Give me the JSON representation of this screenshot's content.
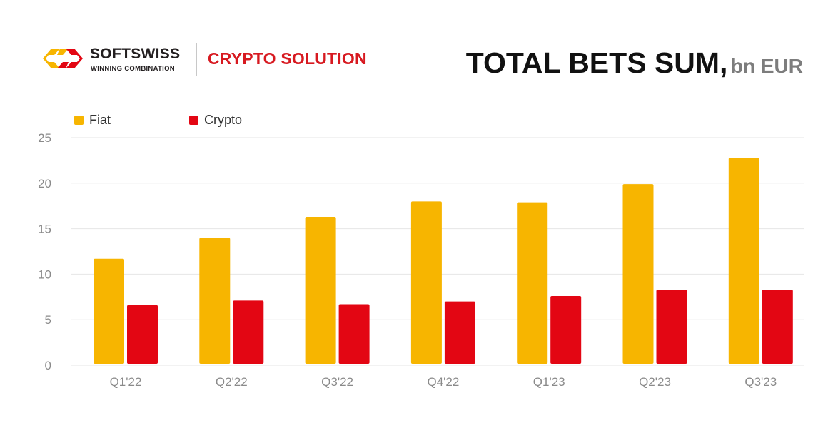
{
  "brand": {
    "name": "SOFTSWISS",
    "tagline": "WINNING COMBINATION",
    "product": "CRYPTO SOLUTION",
    "colors": {
      "primary": "#f7b500",
      "secondary": "#e30613"
    }
  },
  "chart_data": {
    "type": "bar",
    "title": "TOTAL BETS SUM,",
    "title_unit": "bn EUR",
    "categories": [
      "Q1'22",
      "Q2'22",
      "Q3'22",
      "Q4'22",
      "Q1'23",
      "Q2'23",
      "Q3'23"
    ],
    "series": [
      {
        "name": "Fiat",
        "color": "#f7b500",
        "values": [
          11.7,
          14.0,
          16.3,
          18.0,
          17.9,
          19.9,
          22.8
        ]
      },
      {
        "name": "Crypto",
        "color": "#e30613",
        "values": [
          6.6,
          7.1,
          6.7,
          7.0,
          7.6,
          8.3,
          8.3
        ]
      }
    ],
    "ylim": [
      0,
      25
    ],
    "yticks": [
      0,
      5,
      10,
      15,
      20,
      25
    ],
    "xlabel": "",
    "ylabel": "",
    "grid": true,
    "legend": "top-left"
  }
}
